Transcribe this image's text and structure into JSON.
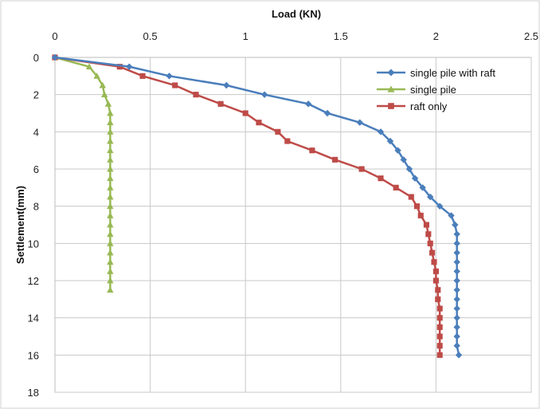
{
  "chart_data": {
    "type": "scatter",
    "title": "",
    "xlabel": "Load (KN)",
    "ylabel": "Settlement(mm)",
    "xlim": [
      0,
      2.5
    ],
    "ylim": [
      0,
      18
    ],
    "y_inverted": true,
    "x_axis_position": "top",
    "x_ticks": [
      "0",
      "0.5",
      "1",
      "1.5",
      "2",
      "2.5"
    ],
    "y_ticks": [
      "0",
      "2",
      "4",
      "6",
      "8",
      "10",
      "12",
      "14",
      "16",
      "18"
    ],
    "grid": true,
    "legend_position": "top-right",
    "series": [
      {
        "name": "single  pile with raft",
        "color": "#4a7ebb",
        "marker": "diamond",
        "x": [
          0,
          0.39,
          0.6,
          0.9,
          1.1,
          1.33,
          1.43,
          1.6,
          1.71,
          1.76,
          1.8,
          1.83,
          1.86,
          1.89,
          1.93,
          1.97,
          2.02,
          2.08,
          2.1,
          2.11,
          2.11,
          2.11,
          2.11,
          2.11,
          2.11,
          2.11,
          2.11,
          2.11,
          2.11,
          2.11,
          2.11,
          2.11,
          2.12,
          2.12,
          2.12,
          2.12
        ],
        "y": [
          0,
          0.5,
          1.0,
          1.5,
          2.0,
          2.5,
          3.0,
          3.5,
          4.0,
          4.5,
          5.0,
          5.5,
          6.0,
          6.5,
          7.0,
          7.5,
          8.0,
          8.5,
          9.0,
          9.5,
          10.0,
          10.5,
          11.0,
          11.5,
          12.0,
          12.5,
          13.0,
          13.5,
          14.0,
          14.5,
          15.0,
          15.5,
          16.0,
          14.3,
          14.7,
          15.8
        ]
      },
      {
        "name": "single pile",
        "color": "#98b954",
        "marker": "triangle",
        "x": [
          0,
          0.18,
          0.22,
          0.25,
          0.26,
          0.28,
          0.29,
          0.29,
          0.29,
          0.29,
          0.29,
          0.29,
          0.29,
          0.29,
          0.29,
          0.29,
          0.29,
          0.29,
          0.29,
          0.29,
          0.29,
          0.29,
          0.29,
          0.29,
          0.29,
          0.29
        ],
        "y": [
          0,
          0.5,
          1.0,
          1.5,
          2.0,
          2.5,
          3.0,
          3.5,
          4.0,
          4.5,
          5.0,
          5.5,
          6.0,
          6.5,
          7.0,
          7.5,
          8.0,
          8.5,
          9.0,
          9.5,
          10.0,
          10.5,
          11.0,
          11.5,
          12.0,
          12.5
        ]
      },
      {
        "name": "raft only",
        "color": "#be4b48",
        "marker": "square",
        "x": [
          0,
          0.34,
          0.46,
          0.63,
          0.74,
          0.87,
          1.0,
          1.07,
          1.17,
          1.22,
          1.35,
          1.47,
          1.61,
          1.71,
          1.79,
          1.87,
          1.9,
          1.92,
          1.95,
          1.96,
          1.97,
          1.98,
          1.99,
          2.0,
          2.0,
          2.01,
          2.01,
          2.02,
          2.02,
          2.02,
          2.02,
          2.02,
          2.02
        ],
        "y": [
          0,
          0.5,
          1.0,
          1.5,
          2.0,
          2.5,
          3.0,
          3.5,
          4.0,
          4.5,
          5.0,
          5.5,
          6.0,
          6.5,
          7.0,
          7.5,
          8.0,
          8.5,
          9.0,
          9.5,
          10.0,
          10.5,
          11.0,
          11.5,
          12.0,
          12.5,
          13.0,
          13.5,
          14.0,
          14.5,
          15.0,
          15.5,
          16.0
        ]
      }
    ]
  }
}
